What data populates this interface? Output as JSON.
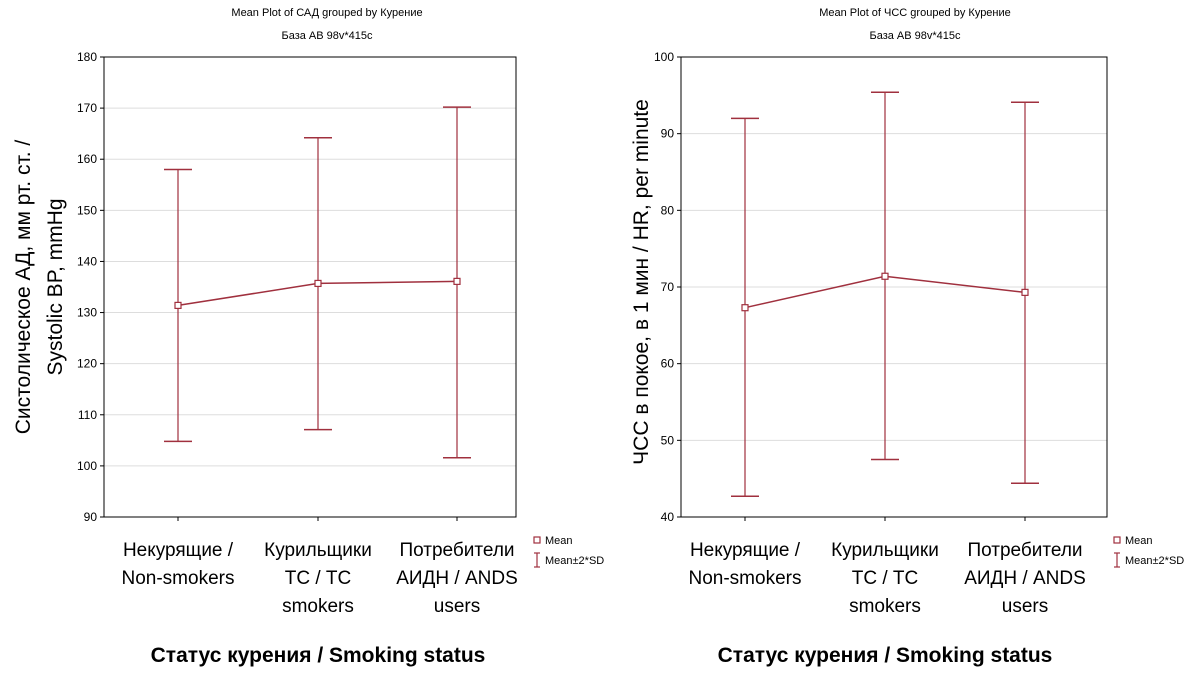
{
  "colors": {
    "series": "#a0303e",
    "grid": "#dddddd",
    "frame": "#000000"
  },
  "chart_data": [
    {
      "type": "line",
      "title": "Mean Plot of САД grouped by  Курение",
      "subtitle": "База АВ 98v*415c",
      "ylabel": [
        "Систолическое АД, мм рт. ст. /",
        "Systolic BP, mmHg"
      ],
      "xlabel": "Статус курения / Smoking status",
      "categories": [
        [
          "Некурящие /",
          "Non-smokers"
        ],
        [
          "Курильщики",
          "ТС / TC",
          "smokers"
        ],
        [
          "Потребители",
          "АИДН / ANDS",
          "users"
        ]
      ],
      "yticks": [
        "90",
        "100",
        "110",
        "120",
        "130",
        "140",
        "150",
        "160",
        "170",
        "180"
      ],
      "ylim": [
        90,
        180
      ],
      "grid": true,
      "legend": {
        "position": "right",
        "items": [
          "Mean",
          "Mean±2*SD"
        ]
      },
      "series": [
        {
          "name": "Mean",
          "values": [
            131.4,
            135.7,
            136.1
          ],
          "upper": [
            158.0,
            164.2,
            170.2
          ],
          "lower": [
            104.8,
            107.1,
            101.6
          ]
        }
      ]
    },
    {
      "type": "line",
      "title": "Mean Plot of ЧСС grouped by  Курение",
      "subtitle": "База АВ 98v*415c",
      "ylabel": [
        "ЧСС в покое, в 1 мин / HR, per minute"
      ],
      "xlabel": "Статус курения / Smoking status",
      "categories": [
        [
          "Некурящие /",
          "Non-smokers"
        ],
        [
          "Курильщики",
          "ТС / TC",
          "smokers"
        ],
        [
          "Потребители",
          "АИДН / ANDS",
          "users"
        ]
      ],
      "yticks": [
        "40",
        "50",
        "60",
        "70",
        "80",
        "90",
        "100"
      ],
      "ylim": [
        40,
        100
      ],
      "grid": true,
      "legend": {
        "position": "right",
        "items": [
          "Mean",
          "Mean±2*SD"
        ]
      },
      "series": [
        {
          "name": "Mean",
          "values": [
            67.3,
            71.4,
            69.3
          ],
          "upper": [
            92.0,
            95.4,
            94.1
          ],
          "lower": [
            42.7,
            47.5,
            44.4
          ]
        }
      ]
    }
  ]
}
